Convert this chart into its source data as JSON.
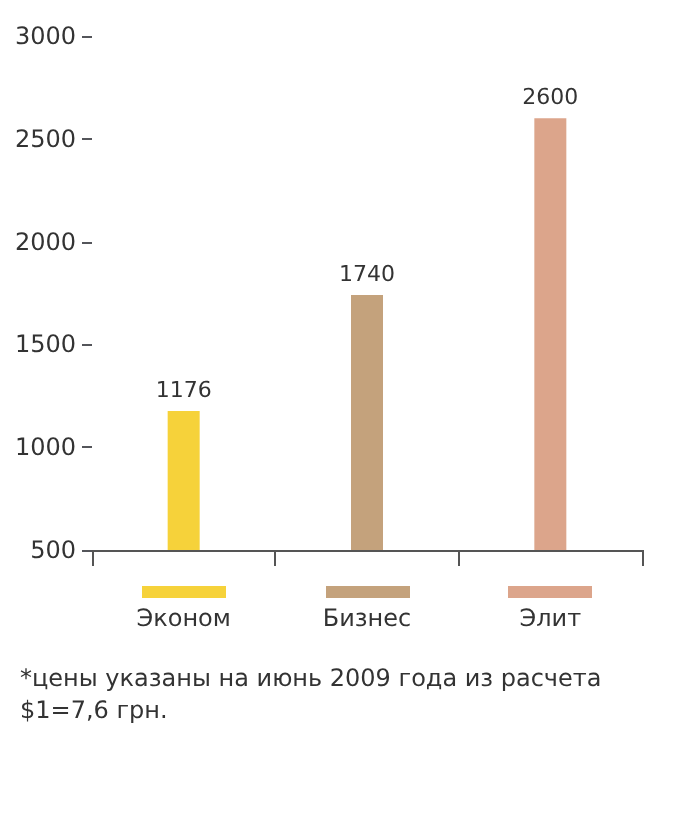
{
  "chart_data": {
    "type": "bar",
    "categories": [
      "Эконом",
      "Бизнес",
      "Элит"
    ],
    "values": [
      1176,
      1740,
      2600
    ],
    "colors": [
      "#f6d23a",
      "#c4a27c",
      "#dca58b"
    ],
    "ylim": [
      500,
      3000
    ],
    "yticks": [
      500,
      1000,
      1500,
      2000,
      2500,
      3000
    ],
    "grid": false,
    "data_labels": true,
    "annotations": [
      "*цены указаны на июнь 2009 года из расчета $1=7,6 грн."
    ]
  }
}
